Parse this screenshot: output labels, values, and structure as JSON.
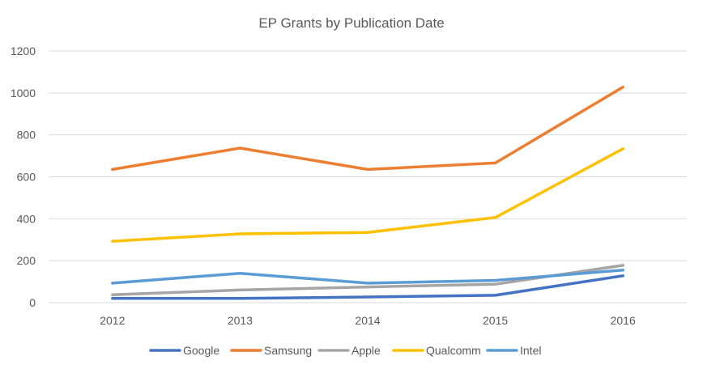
{
  "chart_data": {
    "type": "line",
    "title": "EP Grants by Publication Date",
    "xlabel": "",
    "ylabel": "",
    "categories": [
      "2012",
      "2013",
      "2014",
      "2015",
      "2016"
    ],
    "ylim": [
      0,
      1200
    ],
    "yticks": [
      0,
      200,
      400,
      600,
      800,
      1000,
      1200
    ],
    "grid": true,
    "legend_position": "bottom",
    "series": [
      {
        "name": "Google",
        "color": "#4472c4",
        "values": [
          20,
          20,
          27,
          35,
          128
        ]
      },
      {
        "name": "Samsung",
        "color": "#ed7d31",
        "values": [
          635,
          737,
          635,
          666,
          1028
        ]
      },
      {
        "name": "Apple",
        "color": "#a5a5a5",
        "values": [
          38,
          60,
          75,
          88,
          178
        ]
      },
      {
        "name": "Qualcomm",
        "color": "#ffc000",
        "values": [
          293,
          328,
          335,
          406,
          734
        ]
      },
      {
        "name": "Intel",
        "color": "#5b9bd5",
        "values": [
          93,
          140,
          93,
          106,
          155
        ]
      }
    ]
  }
}
